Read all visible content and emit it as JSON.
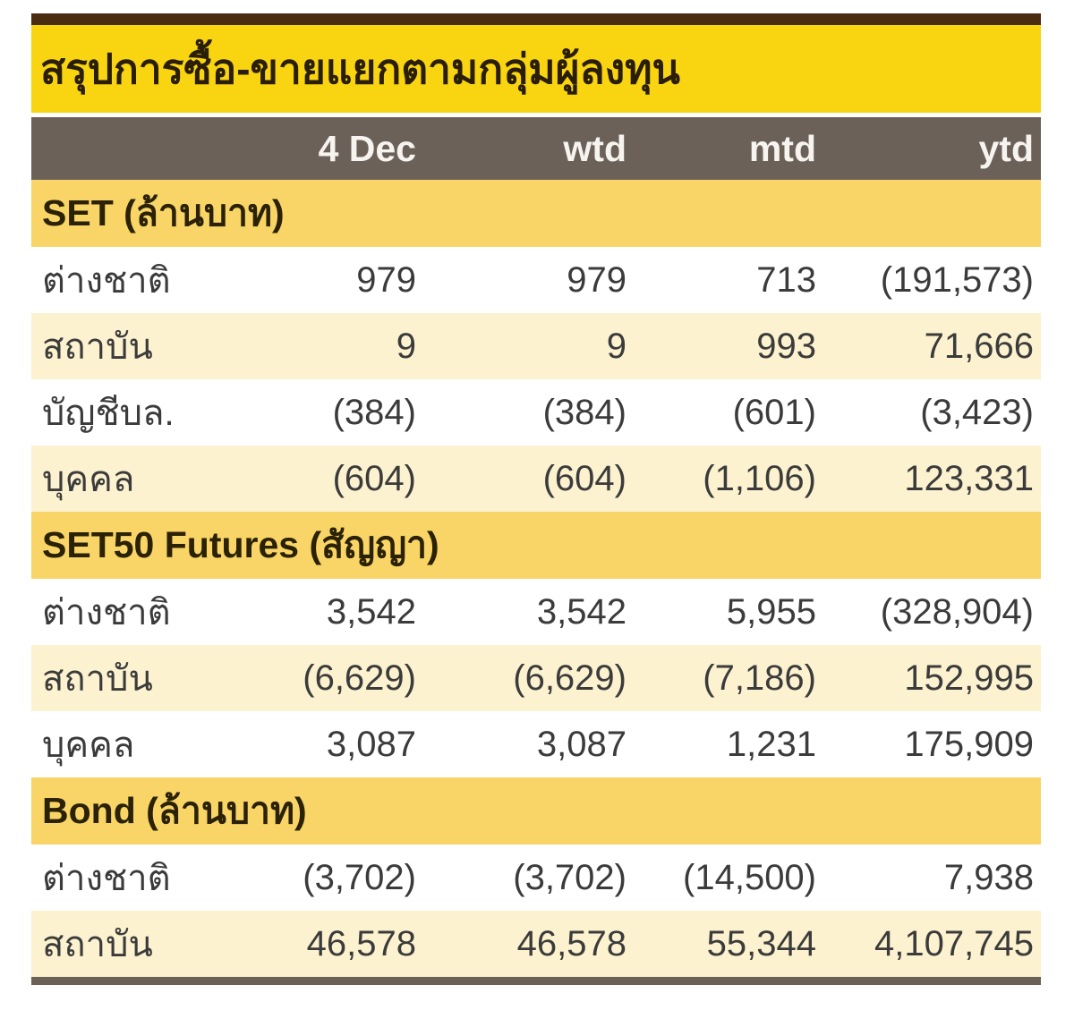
{
  "title": "สรุปการซื้อ-ขายแยกตามกลุ่มผู้ลงทุน",
  "columns": [
    "",
    "4 Dec",
    "wtd",
    "mtd",
    "ytd"
  ],
  "sections": [
    {
      "header": "SET (ล้านบาท)",
      "rows": [
        {
          "label": "ต่างชาติ",
          "values": [
            "979",
            "979",
            "713",
            "(191,573)"
          ]
        },
        {
          "label": "สถาบัน",
          "values": [
            "9",
            "9",
            "993",
            "71,666"
          ]
        },
        {
          "label": "บัญชีบล.",
          "values": [
            "(384)",
            "(384)",
            "(601)",
            "(3,423)"
          ]
        },
        {
          "label": "บุคคล",
          "values": [
            "(604)",
            "(604)",
            "(1,106)",
            "123,331"
          ]
        }
      ]
    },
    {
      "header": "SET50 Futures (สัญญา)",
      "rows": [
        {
          "label": "ต่างชาติ",
          "values": [
            "3,542",
            "3,542",
            "5,955",
            "(328,904)"
          ]
        },
        {
          "label": "สถาบัน",
          "values": [
            "(6,629)",
            "(6,629)",
            "(7,186)",
            "152,995"
          ]
        },
        {
          "label": "บุคคล",
          "values": [
            "3,087",
            "3,087",
            "1,231",
            "175,909"
          ]
        }
      ]
    },
    {
      "header": "Bond (ล้านบาท)",
      "rows": [
        {
          "label": "ต่างชาติ",
          "values": [
            "(3,702)",
            "(3,702)",
            "(14,500)",
            "7,938"
          ]
        },
        {
          "label": "สถาบัน",
          "values": [
            "46,578",
            "46,578",
            "55,344",
            "4,107,745"
          ]
        }
      ]
    }
  ],
  "colors": {
    "top_border": "#4a2d11",
    "title_background": "#f9d411",
    "title_text": "#2a1e06",
    "header_background": "#6b6159",
    "header_text": "#f7f4f0",
    "section_background": "#f8d566",
    "row_stripe": "#fcf2cf",
    "row_white": "#ffffff",
    "data_text": "#3b3b3b",
    "bottom_border": "#6b6159"
  }
}
